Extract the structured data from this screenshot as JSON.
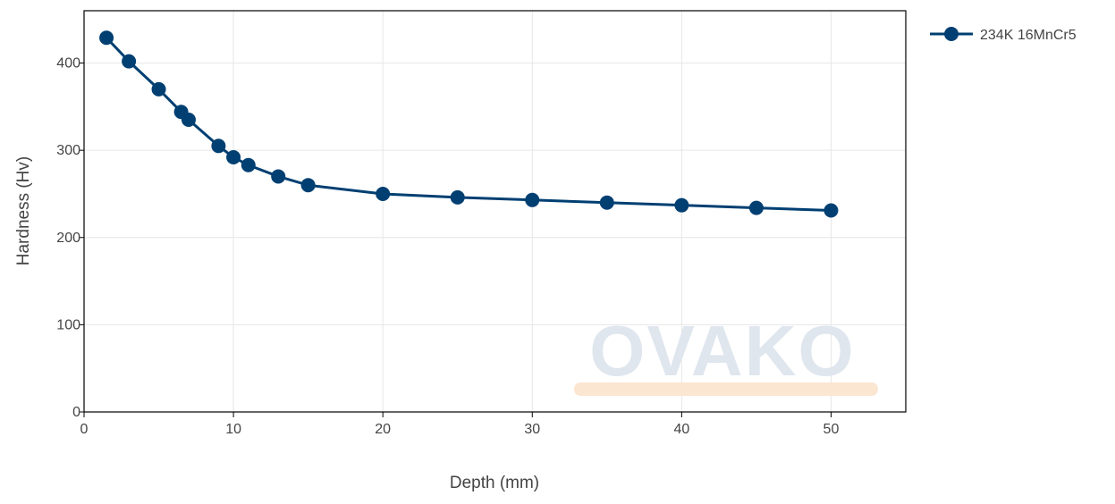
{
  "chart_data": {
    "type": "line",
    "title": "",
    "xlabel": "Depth (mm)",
    "ylabel": "Hardness (Hv)",
    "xlim": [
      0,
      55
    ],
    "ylim": [
      0,
      460
    ],
    "xticks": [
      0,
      10,
      20,
      30,
      40,
      50
    ],
    "yticks": [
      0,
      100,
      200,
      300,
      400
    ],
    "grid": true,
    "legend_position": "top-right, outside plot",
    "watermark": "OVAKO",
    "colors": {
      "series": "#003f72",
      "grid": "#e6e6e6",
      "axis": "#000000",
      "watermark_text": "#dfe6ee",
      "watermark_bar": "#fbe6d2"
    },
    "series": [
      {
        "name": "234K 16MnCr5",
        "marker": "circle",
        "x": [
          1.5,
          3,
          5,
          6.5,
          7,
          9,
          10,
          11,
          13,
          15,
          20,
          25,
          30,
          35,
          40,
          45,
          50
        ],
        "y": [
          429,
          402,
          370,
          344,
          335,
          305,
          292,
          283,
          270,
          260,
          250,
          246,
          243,
          240,
          237,
          234,
          231
        ]
      }
    ]
  }
}
